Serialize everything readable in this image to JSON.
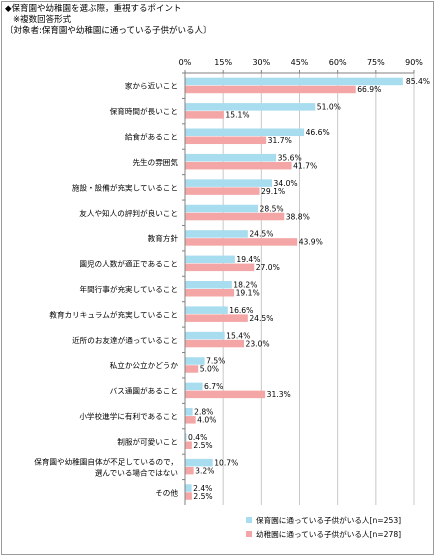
{
  "header": {
    "title": "◆保育園や幼稚園を選ぶ際，重視するポイント",
    "note": "※複数回答形式",
    "subject": "〔対象者:保育園や幼稚園に通っている子供がいる人〕"
  },
  "colors": {
    "series1": "#a8dcef",
    "series2": "#f4a6a6",
    "axis": "#808080",
    "grid": "#c8c8c8"
  },
  "chart_data": {
    "type": "bar",
    "orientation": "horizontal",
    "title": "◆保育園や幼稚園を選ぶ際，重視するポイント",
    "xlim": [
      0,
      90
    ],
    "xticks": [
      "0%",
      "15%",
      "30%",
      "45%",
      "60%",
      "75%",
      "90%"
    ],
    "xtick_values": [
      0,
      15,
      30,
      45,
      60,
      75,
      90
    ],
    "grid": true,
    "legend_position": "bottom-right",
    "categories": [
      [
        "家から近いこと"
      ],
      [
        "保育時間が長いこと"
      ],
      [
        "給食があること"
      ],
      [
        "先生の雰囲気"
      ],
      [
        "施設・設備が充実していること"
      ],
      [
        "友人や知人の評判が良いこと"
      ],
      [
        "教育方針"
      ],
      [
        "園児の人数が適正であること"
      ],
      [
        "年間行事が充実していること"
      ],
      [
        "教育カリキュラムが充実していること"
      ],
      [
        "近所のお友達が通っていること"
      ],
      [
        "私立か公立かどうか"
      ],
      [
        "バス通園があること"
      ],
      [
        "小学校進学に有利であること"
      ],
      [
        "制服が可愛いこと"
      ],
      [
        "保育園や幼稚園自体が不足しているので，",
        "選んでいる場合ではない"
      ],
      [
        "その他"
      ]
    ],
    "series": [
      {
        "name": "保育園に通っている子供がいる人[n=253]",
        "values": [
          85.4,
          51.0,
          46.6,
          35.6,
          34.0,
          28.5,
          24.5,
          19.4,
          18.2,
          16.6,
          15.4,
          7.5,
          6.7,
          2.8,
          0.4,
          10.7,
          2.4
        ],
        "labels": [
          "85.4%",
          "51.0%",
          "46.6%",
          "35.6%",
          "34.0%",
          "28.5%",
          "24.5%",
          "19.4%",
          "18.2%",
          "16.6%",
          "15.4%",
          "7.5%",
          "6.7%",
          "2.8%",
          "0.4%",
          "10.7%",
          "2.4%"
        ]
      },
      {
        "name": "幼稚園に通っている子供がいる人[n=278]",
        "values": [
          66.9,
          15.1,
          31.7,
          41.7,
          29.1,
          38.8,
          43.9,
          27.0,
          19.1,
          24.5,
          23.0,
          5.0,
          31.3,
          4.0,
          2.5,
          3.2,
          2.5
        ],
        "labels": [
          "66.9%",
          "15.1%",
          "31.7%",
          "41.7%",
          "29.1%",
          "38.8%",
          "43.9%",
          "27.0%",
          "19.1%",
          "24.5%",
          "23.0%",
          "5.0%",
          "31.3%",
          "4.0%",
          "2.5%",
          "3.2%",
          "2.5%"
        ]
      }
    ]
  }
}
